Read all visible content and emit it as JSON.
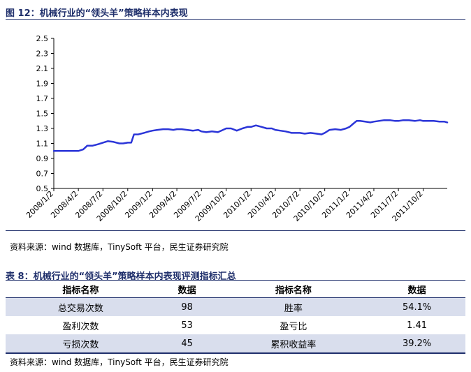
{
  "figure": {
    "caption": "图 12：机械行业的“领头羊”策略样本内表现",
    "source": "资料来源：wind 数据库，TinySoft 平台，民生证券研究院"
  },
  "chart_data": {
    "type": "line",
    "title": "",
    "xlabel": "",
    "ylabel": "",
    "ylim": [
      0.5,
      2.5
    ],
    "yticks": [
      "2.5",
      "2.3",
      "2.1",
      "1.9",
      "1.7",
      "1.5",
      "1.3",
      "1.1",
      "0.9",
      "0.7",
      "0.5"
    ],
    "xticks": [
      "2008/1/2",
      "2008/4/2",
      "2008/7/2",
      "2008/10/2",
      "2009/1/2",
      "2009/4/2",
      "2009/7/2",
      "2009/10/2",
      "2010/1/2",
      "2010/4/2",
      "2010/7/2",
      "2010/10/2",
      "2011/1/2",
      "2011/4/2",
      "2011/7/2",
      "2011/10/2"
    ],
    "line_color": "#2b35d8",
    "series": [
      {
        "name": "",
        "points": [
          [
            "2008/1/2",
            1.0
          ],
          [
            "2008/1/20",
            1.0
          ],
          [
            "2008/2/10",
            1.0
          ],
          [
            "2008/3/1",
            1.0
          ],
          [
            "2008/3/20",
            1.0
          ],
          [
            "2008/4/2",
            1.0
          ],
          [
            "2008/4/20",
            1.02
          ],
          [
            "2008/5/5",
            1.07
          ],
          [
            "2008/5/25",
            1.07
          ],
          [
            "2008/6/15",
            1.09
          ],
          [
            "2008/7/2",
            1.11
          ],
          [
            "2008/7/20",
            1.13
          ],
          [
            "2008/8/10",
            1.12
          ],
          [
            "2008/9/1",
            1.1
          ],
          [
            "2008/9/15",
            1.1
          ],
          [
            "2008/10/2",
            1.11
          ],
          [
            "2008/10/15",
            1.11
          ],
          [
            "2008/10/25",
            1.22
          ],
          [
            "2008/11/10",
            1.22
          ],
          [
            "2008/12/1",
            1.24
          ],
          [
            "2008/12/20",
            1.26
          ],
          [
            "2009/1/2",
            1.27
          ],
          [
            "2009/1/20",
            1.28
          ],
          [
            "2009/2/10",
            1.29
          ],
          [
            "2009/3/1",
            1.29
          ],
          [
            "2009/3/20",
            1.28
          ],
          [
            "2009/4/2",
            1.29
          ],
          [
            "2009/4/20",
            1.29
          ],
          [
            "2009/5/10",
            1.28
          ],
          [
            "2009/6/1",
            1.27
          ],
          [
            "2009/6/20",
            1.28
          ],
          [
            "2009/7/2",
            1.26
          ],
          [
            "2009/7/20",
            1.25
          ],
          [
            "2009/8/10",
            1.26
          ],
          [
            "2009/9/1",
            1.25
          ],
          [
            "2009/9/20",
            1.28
          ],
          [
            "2009/10/2",
            1.3
          ],
          [
            "2009/10/20",
            1.3
          ],
          [
            "2009/11/10",
            1.27
          ],
          [
            "2009/12/1",
            1.3
          ],
          [
            "2009/12/20",
            1.32
          ],
          [
            "2010/1/2",
            1.32
          ],
          [
            "2010/1/20",
            1.34
          ],
          [
            "2010/2/10",
            1.32
          ],
          [
            "2010/3/1",
            1.3
          ],
          [
            "2010/3/20",
            1.3
          ],
          [
            "2010/4/2",
            1.28
          ],
          [
            "2010/4/20",
            1.27
          ],
          [
            "2010/5/10",
            1.26
          ],
          [
            "2010/6/1",
            1.24
          ],
          [
            "2010/6/20",
            1.24
          ],
          [
            "2010/7/2",
            1.24
          ],
          [
            "2010/7/20",
            1.23
          ],
          [
            "2010/8/10",
            1.24
          ],
          [
            "2010/9/1",
            1.23
          ],
          [
            "2010/9/20",
            1.22
          ],
          [
            "2010/10/2",
            1.24
          ],
          [
            "2010/10/20",
            1.28
          ],
          [
            "2010/11/10",
            1.29
          ],
          [
            "2010/12/1",
            1.28
          ],
          [
            "2010/12/20",
            1.3
          ],
          [
            "2011/1/2",
            1.32
          ],
          [
            "2011/1/15",
            1.36
          ],
          [
            "2011/1/28",
            1.4
          ],
          [
            "2011/2/10",
            1.4
          ],
          [
            "2011/3/1",
            1.39
          ],
          [
            "2011/3/20",
            1.38
          ],
          [
            "2011/4/2",
            1.39
          ],
          [
            "2011/4/20",
            1.4
          ],
          [
            "2011/5/10",
            1.41
          ],
          [
            "2011/6/1",
            1.41
          ],
          [
            "2011/6/20",
            1.4
          ],
          [
            "2011/7/2",
            1.4
          ],
          [
            "2011/7/20",
            1.41
          ],
          [
            "2011/8/10",
            1.41
          ],
          [
            "2011/9/1",
            1.4
          ],
          [
            "2011/9/20",
            1.41
          ],
          [
            "2011/10/2",
            1.4
          ],
          [
            "2011/10/20",
            1.4
          ],
          [
            "2011/11/10",
            1.4
          ],
          [
            "2011/12/1",
            1.39
          ],
          [
            "2011/12/20",
            1.39
          ],
          [
            "2011/12/30",
            1.38
          ]
        ]
      }
    ]
  },
  "table": {
    "caption": "表 8：机械行业的“领头羊”策略样本内表现评测指标汇总",
    "headers": [
      "指标名称",
      "数据",
      "指标名称",
      "数据"
    ],
    "rows": [
      [
        "总交易次数",
        "98",
        "胜率",
        "54.1%"
      ],
      [
        "盈利次数",
        "53",
        "盈亏比",
        "1.41"
      ],
      [
        "亏损次数",
        "45",
        "累积收益率",
        "39.2%"
      ]
    ],
    "shade_color": "#d9deed",
    "source": "资料来源：wind 数据库，TinySoft 平台，民生证券研究院"
  }
}
